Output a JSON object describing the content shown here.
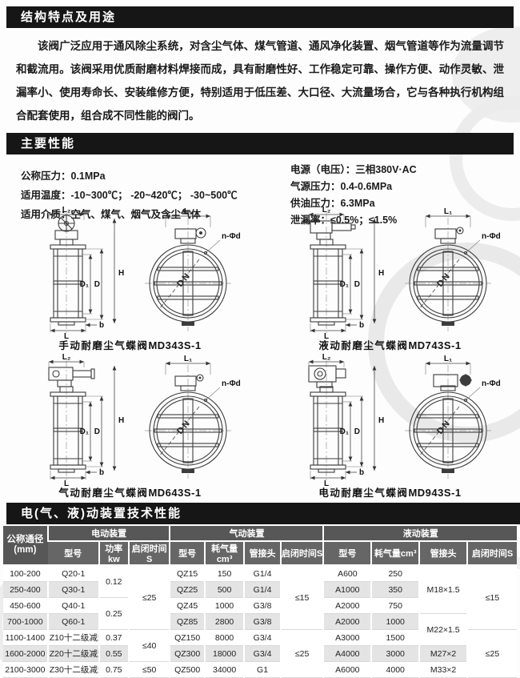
{
  "colors": {
    "bar_bg": "#161616",
    "bar_text": "#ffffff",
    "header_bg": "#5e5e5e",
    "row_alt": "#e4e4e4",
    "line": "#3c3c3c"
  },
  "section1": {
    "title": "结构特点及用途",
    "paragraph": "该阀广泛应用于通风除尘系统，对含尘气体、煤气管道、通风净化装置、烟气管道等作为流量调节和截流用。该阀采用优质耐磨材料焊接而成，具有耐磨性好、工作稳定可靠、操作方便、动作灵敏、泄漏率小、使用寿命长、安装维修方便，特别适用于低压差、大口径、大流量场合，它与各种执行机构组合配套使用，组合成不同性能的阀门。"
  },
  "section2": {
    "title": "主要性能",
    "left": [
      "公称压力：0.1MPa",
      "适用温度：-10~300℃；  -20~420℃；  -30~500℃",
      "适用介质：空气、煤气、烟气及含尘气体"
    ],
    "right": [
      "电源（电压）：三相380V·AC",
      "气源压力：0.4-0.6MPa",
      "供油压力：6.3MPa",
      "泄漏率：≤0.5%；≤1.5%"
    ]
  },
  "diagrams": {
    "dims": {
      "L2": "L₂",
      "L1": "L₁",
      "H": "H",
      "D1": "D₁",
      "D": "D",
      "L": "L",
      "b": "b",
      "nd": "n-Φd",
      "DN": "DN"
    },
    "items": [
      {
        "type": "manual",
        "caption_prefix": "手动耐磨尘气蝶阀",
        "model": "MD343S-1"
      },
      {
        "type": "hydraulic",
        "caption_prefix": "液动耐磨尘气蝶阀",
        "model": "MD743S-1"
      },
      {
        "type": "pneumatic",
        "caption_prefix": "气动耐磨尘气蝶阀",
        "model": "MD643S-1"
      },
      {
        "type": "electric",
        "caption_prefix": "电动耐磨尘气蝶阀",
        "model": "MD943S-1"
      }
    ]
  },
  "table": {
    "title": "电(气、液)动装置技术性能",
    "col1_header": "公称通径",
    "col1_unit": "(mm)",
    "groups": [
      {
        "label": "电动装置",
        "cols": [
          "型号",
          "功率kw",
          "启闭时间S"
        ]
      },
      {
        "label": "气动装置",
        "cols": [
          "型号",
          "耗气量cm³",
          "管接头",
          "启闭时间S"
        ]
      },
      {
        "label": "液动装置",
        "cols": [
          "型号",
          "耗气量cm³",
          "管接头",
          "启闭时间S"
        ]
      }
    ],
    "rows": [
      [
        "100-200",
        "Q20-1",
        {
          "t": "0.12",
          "rs": 2
        },
        {
          "t": "≤25",
          "rs": 4
        },
        "QZ15",
        "150",
        "G1/4",
        {
          "t": "≤15",
          "rs": 4
        },
        "A600",
        "250",
        {
          "t": "M18×1.5",
          "rs": 3
        },
        {
          "t": "≤15",
          "rs": 4
        }
      ],
      [
        "250-400",
        "Q30-1",
        "QZ25",
        "500",
        "G1/4",
        "A1000",
        "350"
      ],
      [
        "450-600",
        "Q40-1",
        {
          "t": "0.25",
          "rs": 2
        },
        "QZ45",
        "1000",
        "G3/8",
        "A2000",
        "750"
      ],
      [
        "700-1000",
        "Q60-1",
        "QZ85",
        "2800",
        "G3/8",
        "A2000",
        "1000",
        {
          "t": "M22×1.5",
          "rs": 2
        }
      ],
      [
        "1100-1400",
        "Z10十二级减速",
        "0.37",
        {
          "t": "≤40",
          "rs": 2
        },
        "QZ150",
        "8000",
        "G3/4",
        {
          "t": "≤25",
          "rs": 3
        },
        "A3000",
        "1500",
        {
          "t": "≤25",
          "rs": 3
        }
      ],
      [
        "1600-2000",
        "Z20十二级减速",
        "0.55",
        "QZ300",
        "18000",
        "G3/4",
        "A4000",
        "3000",
        "M27×2"
      ],
      [
        "2100-3000",
        "Z30十二级减速",
        "0.75",
        "≤50",
        "QZ500",
        "34000",
        "G1",
        "A6000",
        "4000",
        "M33×2"
      ]
    ]
  }
}
